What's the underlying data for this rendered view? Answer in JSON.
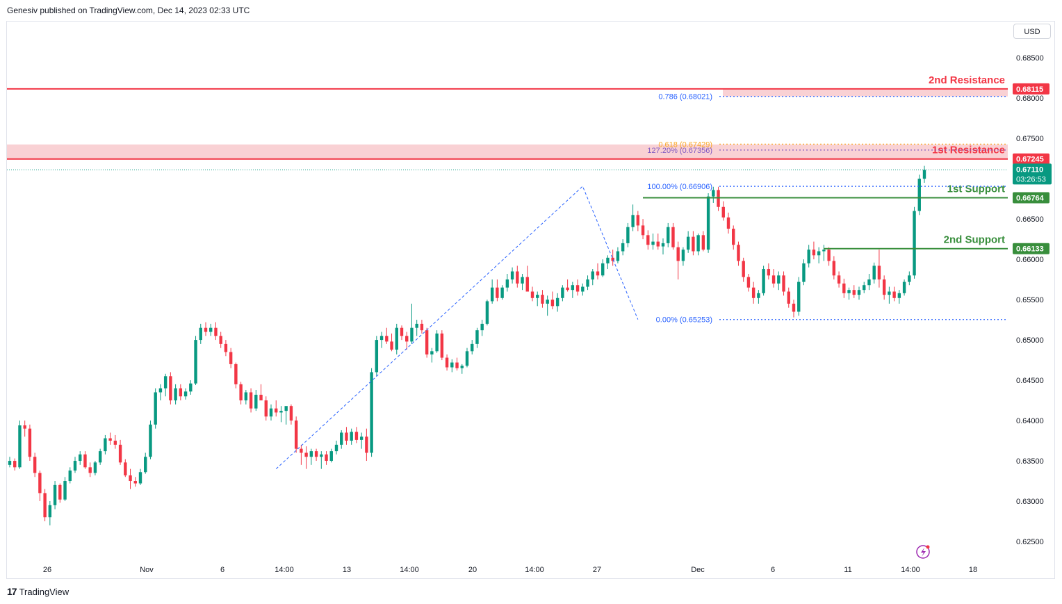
{
  "header": {
    "publisher_line": "Genesiv published on TradingView.com, Dec 14, 2023 02:33 UTC"
  },
  "currency": "USD",
  "footer": {
    "brand": "TradingView",
    "brand_mark": "17"
  },
  "colors": {
    "up": "#089981",
    "down": "#f23645",
    "resistance": "#f23645",
    "support": "#388e3c",
    "fib": "#2962ff",
    "fib_gold": "#f9a825",
    "fib_purple": "#7e57c2",
    "zone": "#f8c5c9"
  },
  "chart_data": {
    "type": "candlestick",
    "symbol_quote": "USD",
    "ylim": [
      0.6225,
      0.6895
    ],
    "y_ticks": [
      0.685,
      0.68,
      0.675,
      0.67,
      0.665,
      0.66,
      0.655,
      0.65,
      0.645,
      0.64,
      0.635,
      0.63,
      0.625
    ],
    "y_tick_labels": [
      "0.68500",
      "0.68000",
      "0.67500",
      "0.67000",
      "0.66500",
      "0.66000",
      "0.65500",
      "0.65000",
      "0.64500",
      "0.64000",
      "0.63500",
      "0.63000",
      "0.62500"
    ],
    "x_ticks": [
      {
        "label": "26",
        "bar": 4
      },
      {
        "label": "Nov",
        "bar": 22
      },
      {
        "label": "6",
        "bar": 34
      },
      {
        "label": "14:00",
        "bar": 44
      },
      {
        "label": "13",
        "bar": 54
      },
      {
        "label": "14:00",
        "bar": 64
      },
      {
        "label": "20",
        "bar": 74
      },
      {
        "label": "14:00",
        "bar": 84
      },
      {
        "label": "27",
        "bar": 94
      },
      {
        "label": "Dec",
        "bar": 110
      },
      {
        "label": "6",
        "bar": 122
      },
      {
        "label": "11",
        "bar": 134
      },
      {
        "label": "14:00",
        "bar": 144
      },
      {
        "label": "18",
        "bar": 154
      }
    ],
    "bar_count_visible": 160,
    "candles": [
      [
        0.6345,
        0.6355,
        0.6342,
        0.635
      ],
      [
        0.635,
        0.6353,
        0.6338,
        0.6342
      ],
      [
        0.6342,
        0.64,
        0.634,
        0.6394
      ],
      [
        0.6394,
        0.64,
        0.638,
        0.639
      ],
      [
        0.639,
        0.6395,
        0.635,
        0.6355
      ],
      [
        0.6355,
        0.636,
        0.633,
        0.6335
      ],
      [
        0.6335,
        0.6338,
        0.63,
        0.631
      ],
      [
        0.631,
        0.6315,
        0.6275,
        0.628
      ],
      [
        0.628,
        0.63,
        0.627,
        0.6295
      ],
      [
        0.6295,
        0.6325,
        0.629,
        0.632
      ],
      [
        0.632,
        0.6322,
        0.6298,
        0.6302
      ],
      [
        0.6302,
        0.633,
        0.63,
        0.6325
      ],
      [
        0.6325,
        0.6342,
        0.6322,
        0.6338
      ],
      [
        0.6338,
        0.6355,
        0.6335,
        0.635
      ],
      [
        0.635,
        0.6362,
        0.6345,
        0.6358
      ],
      [
        0.6358,
        0.6362,
        0.634,
        0.6342
      ],
      [
        0.6342,
        0.6348,
        0.633,
        0.6335
      ],
      [
        0.6335,
        0.635,
        0.6332,
        0.6348
      ],
      [
        0.6348,
        0.6365,
        0.6345,
        0.6362
      ],
      [
        0.6362,
        0.6382,
        0.6358,
        0.6378
      ],
      [
        0.6378,
        0.6385,
        0.637,
        0.6375
      ],
      [
        0.6375,
        0.6382,
        0.6365,
        0.637
      ],
      [
        0.637,
        0.6376,
        0.6345,
        0.6348
      ],
      [
        0.6348,
        0.6352,
        0.633,
        0.6332
      ],
      [
        0.6332,
        0.634,
        0.6315,
        0.6325
      ],
      [
        0.6325,
        0.633,
        0.6318,
        0.6322
      ],
      [
        0.6322,
        0.634,
        0.632,
        0.6336
      ],
      [
        0.6336,
        0.636,
        0.6334,
        0.6355
      ],
      [
        0.6355,
        0.64,
        0.6352,
        0.6395
      ],
      [
        0.6395,
        0.644,
        0.639,
        0.6435
      ],
      [
        0.6435,
        0.6445,
        0.6425,
        0.644
      ],
      [
        0.644,
        0.6458,
        0.643,
        0.6455
      ],
      [
        0.6455,
        0.646,
        0.642,
        0.6425
      ],
      [
        0.6425,
        0.6445,
        0.642,
        0.644
      ],
      [
        0.644,
        0.6445,
        0.6425,
        0.643
      ],
      [
        0.643,
        0.644,
        0.6426,
        0.6436
      ],
      [
        0.6436,
        0.645,
        0.6432,
        0.6446
      ],
      [
        0.6446,
        0.6505,
        0.6444,
        0.65
      ],
      [
        0.65,
        0.652,
        0.6495,
        0.6515
      ],
      [
        0.6515,
        0.6522,
        0.6505,
        0.651
      ],
      [
        0.651,
        0.652,
        0.6505,
        0.6515
      ],
      [
        0.6515,
        0.6522,
        0.65,
        0.6505
      ],
      [
        0.6505,
        0.651,
        0.649,
        0.6495
      ],
      [
        0.6495,
        0.65,
        0.648,
        0.6485
      ],
      [
        0.6485,
        0.649,
        0.6465,
        0.647
      ],
      [
        0.647,
        0.6472,
        0.644,
        0.6445
      ],
      [
        0.6445,
        0.6448,
        0.642,
        0.6425
      ],
      [
        0.6425,
        0.6438,
        0.642,
        0.6435
      ],
      [
        0.6435,
        0.644,
        0.641,
        0.6415
      ],
      [
        0.6415,
        0.6438,
        0.6412,
        0.6432
      ],
      [
        0.6432,
        0.6445,
        0.6428,
        0.6425
      ],
      [
        0.6425,
        0.643,
        0.64,
        0.6405
      ],
      [
        0.6405,
        0.642,
        0.64,
        0.6415
      ],
      [
        0.6415,
        0.6425,
        0.6405,
        0.641
      ],
      [
        0.641,
        0.6418,
        0.6398,
        0.6412
      ],
      [
        0.6412,
        0.6415,
        0.6395,
        0.6418
      ],
      [
        0.6418,
        0.642,
        0.6395,
        0.64
      ],
      [
        0.64,
        0.6405,
        0.636,
        0.6365
      ],
      [
        0.6365,
        0.637,
        0.6345,
        0.636
      ],
      [
        0.636,
        0.6368,
        0.634,
        0.6355
      ],
      [
        0.6355,
        0.6365,
        0.6345,
        0.6362
      ],
      [
        0.6362,
        0.6365,
        0.635,
        0.6355
      ],
      [
        0.6355,
        0.6362,
        0.634,
        0.6358
      ],
      [
        0.6358,
        0.6362,
        0.6345,
        0.635
      ],
      [
        0.635,
        0.6365,
        0.6348,
        0.6362
      ],
      [
        0.6362,
        0.6375,
        0.6358,
        0.637
      ],
      [
        0.637,
        0.6388,
        0.6365,
        0.6385
      ],
      [
        0.6385,
        0.6392,
        0.637,
        0.6375
      ],
      [
        0.6375,
        0.639,
        0.637,
        0.6386
      ],
      [
        0.6386,
        0.6392,
        0.6372,
        0.6376
      ],
      [
        0.6376,
        0.6385,
        0.6365,
        0.638
      ],
      [
        0.638,
        0.639,
        0.635,
        0.636
      ],
      [
        0.636,
        0.6465,
        0.6355,
        0.646
      ],
      [
        0.646,
        0.6505,
        0.6455,
        0.65
      ],
      [
        0.65,
        0.651,
        0.649,
        0.6505
      ],
      [
        0.6505,
        0.6515,
        0.6495,
        0.6498
      ],
      [
        0.6498,
        0.6508,
        0.6486,
        0.6488
      ],
      [
        0.6488,
        0.652,
        0.6482,
        0.6515
      ],
      [
        0.6515,
        0.6518,
        0.65,
        0.6505
      ],
      [
        0.6505,
        0.651,
        0.6488,
        0.6498
      ],
      [
        0.6498,
        0.6545,
        0.6495,
        0.6515
      ],
      [
        0.6515,
        0.6525,
        0.6505,
        0.652
      ],
      [
        0.652,
        0.6525,
        0.6508,
        0.6512
      ],
      [
        0.6512,
        0.6515,
        0.6478,
        0.6482
      ],
      [
        0.6482,
        0.649,
        0.6472,
        0.6486
      ],
      [
        0.6486,
        0.6512,
        0.6484,
        0.6508
      ]
    ],
    "candles_continued": [
      [
        0.6508,
        0.6512,
        0.6475,
        0.6478
      ],
      [
        0.6478,
        0.6482,
        0.6462,
        0.6466
      ],
      [
        0.6466,
        0.6476,
        0.646,
        0.6472
      ],
      [
        0.6472,
        0.6478,
        0.6462,
        0.6465
      ],
      [
        0.6465,
        0.647,
        0.6458,
        0.6468
      ],
      [
        0.6468,
        0.649,
        0.6466,
        0.6486
      ],
      [
        0.6486,
        0.65,
        0.6482,
        0.6495
      ],
      [
        0.6495,
        0.6515,
        0.649,
        0.6512
      ],
      [
        0.6512,
        0.6525,
        0.6505,
        0.652
      ],
      [
        0.652,
        0.655,
        0.6518,
        0.6548
      ],
      [
        0.6548,
        0.6575,
        0.6545,
        0.6565
      ],
      [
        0.6565,
        0.6575,
        0.6548,
        0.6552
      ],
      [
        0.6552,
        0.6568,
        0.655,
        0.6565
      ],
      [
        0.6565,
        0.6582,
        0.656,
        0.6575
      ],
      [
        0.6575,
        0.659,
        0.657,
        0.6585
      ],
      [
        0.6585,
        0.6592,
        0.6565,
        0.657
      ],
      [
        0.657,
        0.6582,
        0.6562,
        0.6578
      ],
      [
        0.6578,
        0.6592,
        0.6565,
        0.656
      ],
      [
        0.656,
        0.6566,
        0.6548,
        0.6552
      ],
      [
        0.6552,
        0.656,
        0.6542,
        0.6556
      ],
      [
        0.6556,
        0.6562,
        0.654,
        0.6545
      ],
      [
        0.6545,
        0.6555,
        0.653,
        0.655
      ],
      [
        0.655,
        0.656,
        0.6538,
        0.6542
      ],
      [
        0.6542,
        0.6558,
        0.6535,
        0.6552
      ],
      [
        0.6552,
        0.6568,
        0.6548,
        0.6565
      ],
      [
        0.6565,
        0.6575,
        0.656,
        0.6562
      ],
      [
        0.6562,
        0.6572,
        0.6552,
        0.6568
      ],
      [
        0.6568,
        0.6575,
        0.6555,
        0.656
      ],
      [
        0.656,
        0.657,
        0.6555,
        0.6566
      ],
      [
        0.6566,
        0.658,
        0.6562,
        0.6575
      ],
      [
        0.6575,
        0.6588,
        0.6568,
        0.6585
      ],
      [
        0.6585,
        0.6595,
        0.6575,
        0.658
      ],
      [
        0.658,
        0.66,
        0.6578,
        0.6595
      ],
      [
        0.6595,
        0.6605,
        0.6588,
        0.6602
      ],
      [
        0.6602,
        0.6612,
        0.6592,
        0.6598
      ],
      [
        0.6598,
        0.6615,
        0.6595,
        0.661
      ],
      [
        0.661,
        0.6625,
        0.6605,
        0.662
      ],
      [
        0.662,
        0.6645,
        0.6615,
        0.664
      ],
      [
        0.664,
        0.6668,
        0.6635,
        0.6655
      ],
      [
        0.6655,
        0.666,
        0.6635,
        0.6642
      ],
      [
        0.6642,
        0.665,
        0.6625,
        0.663
      ],
      [
        0.663,
        0.6636,
        0.6612,
        0.6618
      ],
      [
        0.6618,
        0.6632,
        0.6612,
        0.6622
      ],
      [
        0.6622,
        0.6632,
        0.6612,
        0.6616
      ],
      [
        0.6616,
        0.6626,
        0.6606,
        0.662
      ],
      [
        0.662,
        0.6645,
        0.6615,
        0.664
      ],
      [
        0.664,
        0.6645,
        0.6612,
        0.6615
      ],
      [
        0.6615,
        0.6622,
        0.6575,
        0.6598
      ],
      [
        0.6598,
        0.6615,
        0.6592,
        0.6612
      ],
      [
        0.6612,
        0.6635,
        0.6608,
        0.6628
      ],
      [
        0.6628,
        0.6635,
        0.6605,
        0.661
      ],
      [
        0.661,
        0.6632,
        0.6605,
        0.663
      ],
      [
        0.663,
        0.6635,
        0.661,
        0.6612
      ],
      [
        0.6612,
        0.6682,
        0.6608,
        0.6678
      ],
      [
        0.6678,
        0.669,
        0.667,
        0.6686
      ],
      [
        0.6686,
        0.669,
        0.666,
        0.6665
      ],
      [
        0.6665,
        0.6672,
        0.6648,
        0.6652
      ],
      [
        0.6652,
        0.6658,
        0.6632,
        0.6638
      ],
      [
        0.6638,
        0.6642,
        0.6612,
        0.6618
      ],
      [
        0.6618,
        0.6622,
        0.6592,
        0.6598
      ],
      [
        0.6598,
        0.6602,
        0.6572,
        0.6578
      ],
      [
        0.6578,
        0.6582,
        0.656,
        0.6565
      ],
      [
        0.6565,
        0.6572,
        0.6545,
        0.6552
      ],
      [
        0.6552,
        0.6562,
        0.6545,
        0.6558
      ],
      [
        0.6558,
        0.6592,
        0.6555,
        0.6588
      ],
      [
        0.6588,
        0.6595,
        0.6575,
        0.658
      ],
      [
        0.658,
        0.6588,
        0.6565,
        0.657
      ],
      [
        0.657,
        0.6585,
        0.6562,
        0.658
      ],
      [
        0.658,
        0.6585,
        0.6555,
        0.656
      ],
      [
        0.656,
        0.6565,
        0.654,
        0.6545
      ],
      [
        0.6545,
        0.655,
        0.6528,
        0.6535
      ],
      [
        0.6535,
        0.6578,
        0.653,
        0.6572
      ],
      [
        0.6572,
        0.66,
        0.6568,
        0.6595
      ],
      [
        0.6595,
        0.6618,
        0.659,
        0.6612
      ],
      [
        0.6612,
        0.6622,
        0.66,
        0.6605
      ],
      [
        0.6605,
        0.6615,
        0.6595,
        0.661
      ],
      [
        0.661,
        0.6618,
        0.6598,
        0.6612
      ],
      [
        0.6612,
        0.6615,
        0.6592,
        0.6598
      ],
      [
        0.6598,
        0.6604,
        0.6575,
        0.658
      ],
      [
        0.658,
        0.6585,
        0.6565,
        0.657
      ],
      [
        0.657,
        0.6576,
        0.6552,
        0.6558
      ],
      [
        0.6558,
        0.6565,
        0.655,
        0.6562
      ],
      [
        0.6562,
        0.6568,
        0.6552,
        0.6556
      ],
      [
        0.6556,
        0.6566,
        0.655,
        0.6562
      ],
      [
        0.6562,
        0.6572,
        0.6558,
        0.6568
      ],
      [
        0.6568,
        0.6582,
        0.6562,
        0.6575
      ],
      [
        0.6575,
        0.6596,
        0.657,
        0.6592
      ],
      [
        0.6592,
        0.6612,
        0.6565,
        0.6575
      ],
      [
        0.6575,
        0.658,
        0.655,
        0.6556
      ],
      [
        0.6556,
        0.6566,
        0.6545,
        0.656
      ],
      [
        0.656,
        0.6566,
        0.6548,
        0.6552
      ],
      [
        0.6552,
        0.6562,
        0.6545,
        0.6558
      ],
      [
        0.6558,
        0.6575,
        0.6555,
        0.6572
      ],
      [
        0.6572,
        0.6585,
        0.6568,
        0.658
      ],
      [
        0.658,
        0.6665,
        0.6576,
        0.666
      ],
      [
        0.666,
        0.6705,
        0.6655,
        0.67
      ],
      [
        0.67,
        0.6716,
        0.6695,
        0.6711
      ]
    ],
    "levels": [
      {
        "name": "2nd Resistance",
        "value": 0.68115,
        "label": "0.68115",
        "type": "resistance"
      },
      {
        "name": "1st Resistance",
        "value": 0.67245,
        "label": "0.67245",
        "type": "resistance"
      },
      {
        "name": "1st Support",
        "value": 0.66764,
        "label": "0.66764",
        "type": "support"
      },
      {
        "name": "2nd Support",
        "value": 0.66133,
        "label": "0.66133",
        "type": "support"
      }
    ],
    "resistance_zones": [
      [
        0.68021,
        0.68115
      ],
      [
        0.67245,
        0.67425
      ]
    ],
    "fib_levels": [
      {
        "label": "0.786 (0.68021)",
        "value": 0.68021,
        "color": "#2962ff"
      },
      {
        "label": "0.618 (0.67429)",
        "value": 0.67429,
        "color": "#f9a825"
      },
      {
        "label": "127.20% (0.67356)",
        "value": 0.67356,
        "color": "#7e57c2"
      },
      {
        "label": "100.00% (0.66906)",
        "value": 0.66906,
        "color": "#2962ff"
      },
      {
        "label": "0.00% (0.65253)",
        "value": 0.65253,
        "color": "#2962ff"
      }
    ],
    "current_price": {
      "value": 0.6711,
      "label": "0.67110",
      "countdown": "03:26:53"
    },
    "abcd_path": [
      [
        53,
        0.634
      ],
      [
        114,
        0.66906
      ],
      [
        125,
        0.65253
      ]
    ]
  }
}
